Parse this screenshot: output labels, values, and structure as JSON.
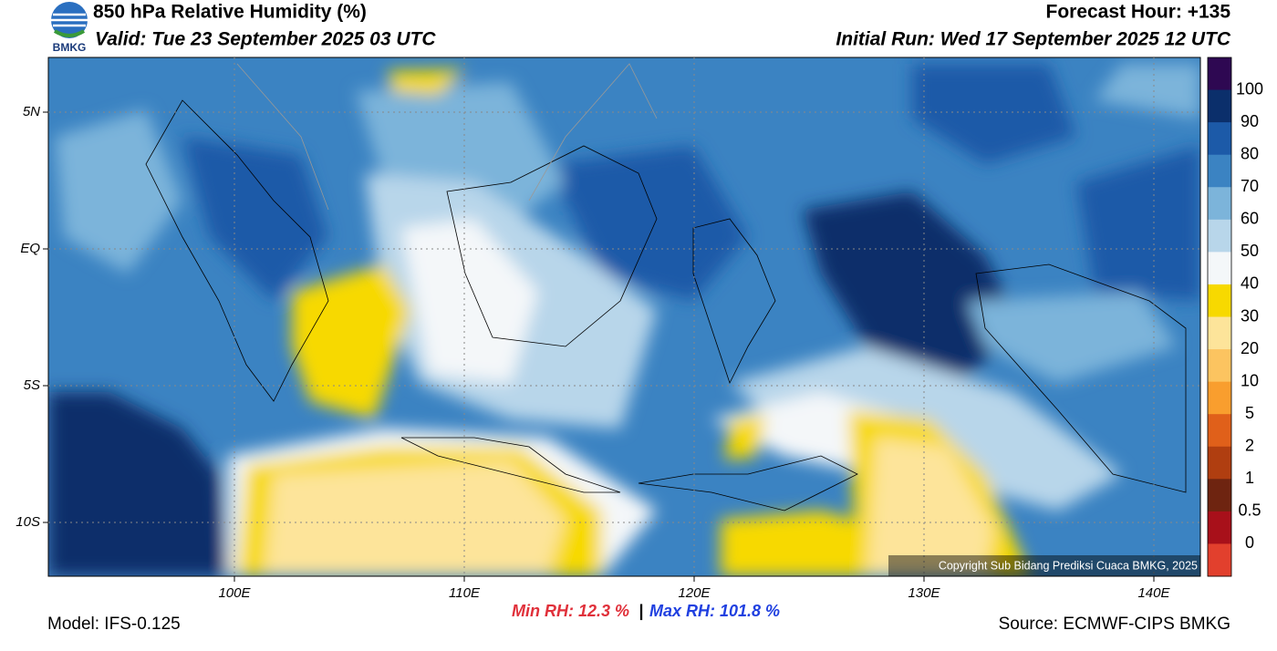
{
  "header": {
    "title": "850 hPa Relative Humidity (%)",
    "valid": "Valid: Tue 23 September 2025 03 UTC",
    "forecast_hour": "Forecast Hour: +135",
    "initial_run": "Initial Run: Wed 17 September 2025 12 UTC",
    "logo_text": "BMKG"
  },
  "map": {
    "lat_labels": [
      "5N",
      "EQ",
      "5S",
      "10S"
    ],
    "lon_labels": [
      "100E",
      "110E",
      "120E",
      "130E",
      "140E"
    ],
    "copyright": "Copyright Sub Bidang Prediksi Cuaca BMKG, 2025"
  },
  "colorbar": {
    "labels": [
      "100",
      "90",
      "80",
      "70",
      "60",
      "50",
      "40",
      "30",
      "20",
      "10",
      "5",
      "2",
      "1",
      "0.5",
      "0"
    ],
    "colors": [
      "#2e0852",
      "#0b2f6b",
      "#1c5aa8",
      "#3b83c2",
      "#7cb4da",
      "#b8d6ea",
      "#f4f7f9",
      "#f7d900",
      "#fde49a",
      "#fcc460",
      "#f99e2e",
      "#e0601a",
      "#b03e10",
      "#6e2410",
      "#a8101a",
      "#e2402d"
    ]
  },
  "footer": {
    "model": "Model: IFS-0.125",
    "min_rh": "Min RH:  12.3 %",
    "separator": "|",
    "max_rh": "Max RH: 101.8 %",
    "source": "Source: ECMWF-CIPS BMKG"
  }
}
